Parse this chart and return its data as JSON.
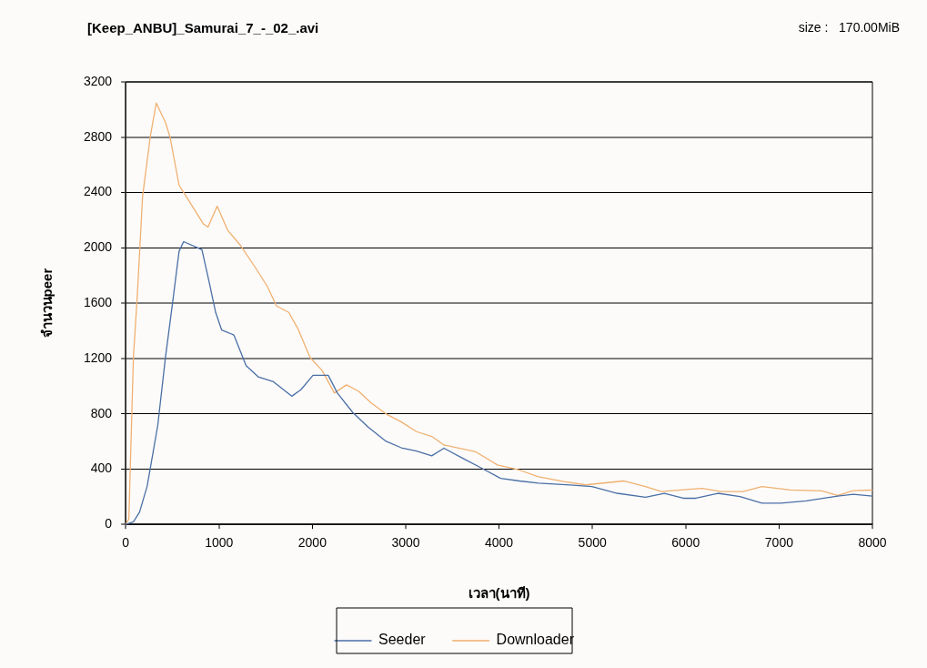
{
  "chart_data": {
    "type": "line",
    "title": "[Keep_ANBU]_Samurai_7_-_02_.avi",
    "annotations": [
      "size :   170.00MiB"
    ],
    "xlabel": "เวลา(นาที)",
    "ylabel": "จำนวนpeer",
    "xlim": [
      0,
      8000
    ],
    "xticks": [
      0,
      1000,
      2000,
      3000,
      4000,
      5000,
      6000,
      7000,
      8000
    ],
    "ylim": [
      0,
      3200
    ],
    "yticks": [
      0,
      400,
      800,
      1200,
      1600,
      2000,
      2400,
      2800,
      3200
    ],
    "grid": "y",
    "legend": "bottom",
    "series": [
      {
        "name": "Seeder",
        "color": "#4a6fa5",
        "x": [
          0,
          83,
          148,
          230,
          344,
          426,
          507,
          572,
          621,
          817,
          898,
          964,
          1029,
          1159,
          1290,
          1420,
          1583,
          1779,
          1877,
          2007,
          2170,
          2268,
          2431,
          2594,
          2790,
          2953,
          3116,
          3279,
          3410,
          3612,
          3815,
          4017,
          4219,
          4422,
          4759,
          4995,
          5265,
          5569,
          5771,
          5974,
          6109,
          6345,
          6581,
          6817,
          7019,
          7289,
          7627,
          7796,
          8000
        ],
        "values": [
          0,
          19,
          88,
          275,
          717,
          1207,
          1626,
          1975,
          2045,
          1987,
          1742,
          1533,
          1405,
          1370,
          1148,
          1067,
          1032,
          927,
          974,
          1078,
          1078,
          950,
          811,
          706,
          601,
          554,
          531,
          496,
          551,
          478,
          406,
          333,
          314,
          298,
          285,
          273,
          225,
          196,
          225,
          189,
          189,
          225,
          201,
          154,
          154,
          170,
          205,
          218,
          205
        ]
      },
      {
        "name": "Downloader",
        "color": "#f0b070",
        "x": [
          0,
          34,
          83,
          126,
          181,
          263,
          328,
          426,
          475,
          572,
          670,
          833,
          882,
          980,
          1094,
          1225,
          1388,
          1519,
          1616,
          1747,
          1845,
          1975,
          2105,
          2236,
          2366,
          2497,
          2627,
          2790,
          2953,
          3116,
          3279,
          3410,
          3747,
          3983,
          4219,
          4422,
          4692,
          4928,
          5333,
          5569,
          5738,
          6177,
          6379,
          6615,
          6817,
          7121,
          7458,
          7627,
          7796,
          8000
        ],
        "values": [
          0,
          40,
          1207,
          1672,
          2371,
          2802,
          3047,
          2907,
          2802,
          2453,
          2348,
          2173,
          2150,
          2301,
          2126,
          2022,
          1859,
          1719,
          1579,
          1533,
          1416,
          1207,
          1113,
          950,
          1009,
          962,
          880,
          799,
          741,
          671,
          636,
          574,
          526,
          430,
          393,
          345,
          310,
          286,
          314,
          273,
          237,
          261,
          237,
          237,
          273,
          249,
          242,
          210,
          244,
          248
        ]
      }
    ]
  }
}
